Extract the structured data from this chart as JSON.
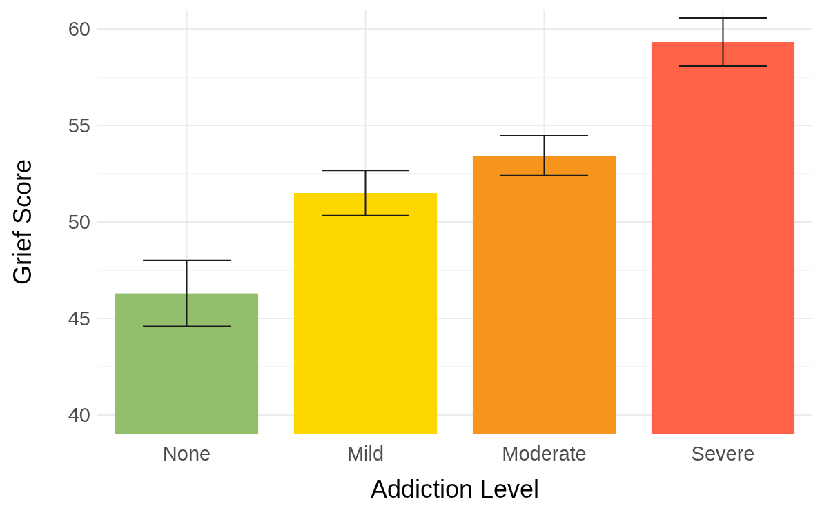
{
  "chart_data": {
    "type": "bar",
    "xlabel": "Addiction Level",
    "ylabel": "Grief Score",
    "categories": [
      "None",
      "Mild",
      "Moderate",
      "Severe"
    ],
    "values": [
      46.3,
      51.5,
      53.43,
      59.32
    ],
    "colors": [
      "#93bf6d",
      "#ffd700",
      "#f7941d",
      "#ff6347"
    ],
    "errors": [
      1.71,
      1.17,
      1.03,
      1.25
    ],
    "ylim": [
      39,
      61
    ],
    "yticks": [
      40,
      {
        "value": 42.5,
        "label": null
      },
      45,
      {
        "value": 47.5,
        "label": null
      },
      50,
      {
        "value": 52.5,
        "label": null
      },
      55,
      {
        "value": 57.5,
        "label": null
      },
      60
    ],
    "grid": true
  }
}
